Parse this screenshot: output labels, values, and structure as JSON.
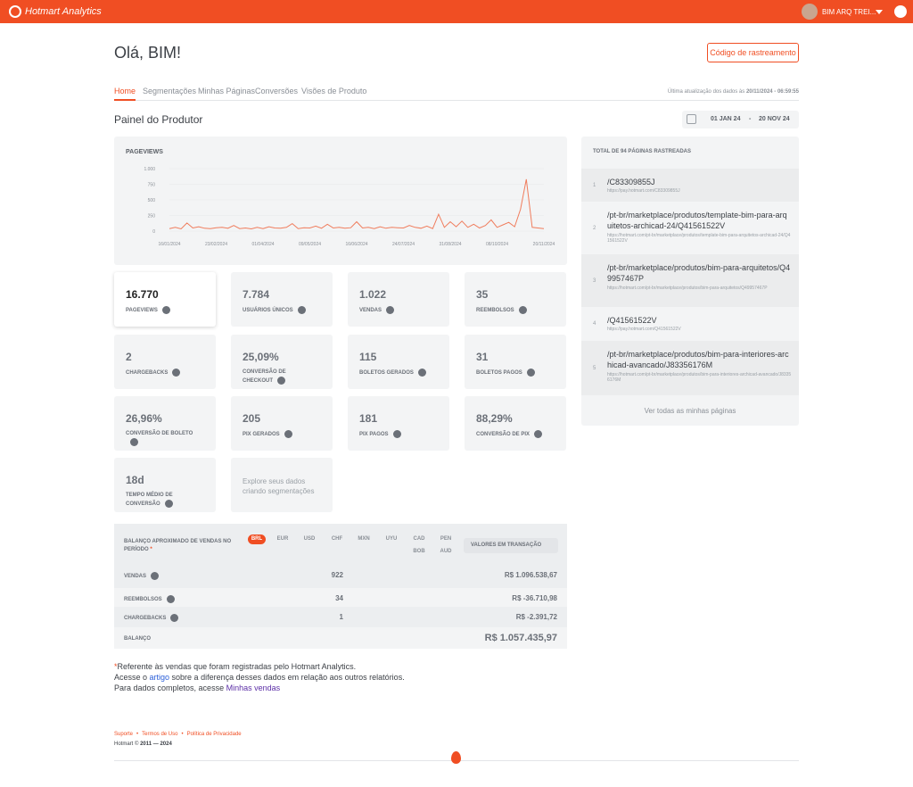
{
  "header": {
    "brand": "Hotmart Analytics",
    "user": "BIM ARQ TREI..."
  },
  "greeting": "Olá, BIM!",
  "tracking_button": "Código de rastreamento",
  "tabs": [
    "Home",
    "Segmentações",
    "Minhas Páginas",
    "Conversões",
    "Visões de Produto"
  ],
  "last_update": {
    "label": "Última atualização dos dados às",
    "date": "20/11/2024 - 06:59:55"
  },
  "panel_title": "Painel do Produtor",
  "date_range": {
    "start": "01 JAN 24",
    "separator": "-",
    "end": "20 NOV 24"
  },
  "chart_data": {
    "type": "line",
    "title": "PAGEVIEWS",
    "color": "#f07c5c",
    "grid": true,
    "categories": [
      "16/01/2024",
      null,
      null,
      null,
      null,
      null,
      null,
      null,
      "23/02/2024",
      null,
      null,
      null,
      null,
      null,
      null,
      null,
      "01/04/2024",
      null,
      null,
      null,
      null,
      null,
      null,
      null,
      "09/05/2024",
      null,
      null,
      null,
      null,
      null,
      null,
      null,
      "16/06/2024",
      null,
      null,
      null,
      null,
      null,
      null,
      null,
      "24/07/2024",
      null,
      null,
      null,
      null,
      null,
      null,
      null,
      "31/08/2024",
      null,
      null,
      null,
      null,
      null,
      null,
      null,
      "08/10/2024",
      null,
      null,
      null,
      null,
      null,
      null,
      null,
      "20/11/2024"
    ],
    "values": [
      40,
      60,
      35,
      130,
      50,
      70,
      45,
      40,
      55,
      60,
      45,
      90,
      40,
      50,
      35,
      60,
      40,
      70,
      50,
      45,
      60,
      120,
      40,
      55,
      50,
      80,
      45,
      110,
      50,
      60,
      45,
      55,
      150,
      50,
      60,
      40,
      70,
      45,
      60,
      55,
      50,
      90,
      60,
      45,
      80,
      40,
      270,
      60,
      150,
      70,
      160,
      60,
      110,
      50,
      90,
      180,
      60,
      100,
      140,
      70,
      350,
      830,
      60,
      50,
      40
    ],
    "ylim": [
      0,
      1000
    ],
    "yticks": [
      0,
      250,
      500,
      750,
      {
        "value": 1000,
        "label": "1.000"
      }
    ]
  },
  "kpis": [
    {
      "value": "16.770",
      "label": "PAGEVIEWS"
    },
    {
      "value": "7.784",
      "label": "USUÁRIOS ÚNICOS"
    },
    {
      "value": "1.022",
      "label": "VENDAS"
    },
    {
      "value": "35",
      "label": "REEMBOLSOS"
    },
    {
      "value": "2",
      "label": "CHARGEBACKS"
    },
    {
      "value": "25,09%",
      "label": "CONVERSÃO DE CHECKOUT"
    },
    {
      "value": "115",
      "label": "BOLETOS GERADOS"
    },
    {
      "value": "31",
      "label": "BOLETOS PAGOS"
    },
    {
      "value": "26,96%",
      "label": "CONVERSÃO DE BOLETO"
    },
    {
      "value": "205",
      "label": "PIX GERADOS"
    },
    {
      "value": "181",
      "label": "PIX PAGOS"
    },
    {
      "value": "88,29%",
      "label": "CONVERSÃO DE PIX"
    },
    {
      "value": "18d",
      "label": "TEMPO MÉDIO DE CONVERSÃO"
    }
  ],
  "explore_card": "Explore seus dados criando segmentações",
  "pages": {
    "title": "TOTAL DE 94 PÁGINAS RASTREADAS",
    "items": [
      {
        "index": 1,
        "path": "/C83309855J",
        "url": "https://pay.hotmart.com/C83309855J"
      },
      {
        "index": 2,
        "path": "/pt-br/marketplace/produtos/template-bim-para-arquitetos-archicad-24/Q41561522V",
        "url": "https://hotmart.com/pt-br/marketplace/produtos/template-bim-para-arquitetos-archicad-24/Q41561522V"
      },
      {
        "index": 3,
        "path": "/pt-br/marketplace/produtos/bim-para-arquitetos/Q49957467P",
        "url": "https://hotmart.com/pt-br/marketplace/produtos/bim-para-arquitetos/Q49957467P"
      },
      {
        "index": 4,
        "path": "/Q41561522V",
        "url": "https://pay.hotmart.com/Q41561522V"
      },
      {
        "index": 5,
        "path": "/pt-br/marketplace/produtos/bim-para-interiores-archicad-avancado/J83356176M",
        "url": "https://hotmart.com/pt-br/marketplace/produtos/bim-para-interiores-archicad-avancado/J83356176M"
      }
    ],
    "see_all": "Ver todas as minhas páginas"
  },
  "balance": {
    "title": "BALANÇO APROXIMADO DE VENDAS NO PERÍODO",
    "asterisk": "*",
    "currencies": [
      "BRL",
      "EUR",
      "USD",
      "CHF",
      "MXN",
      "UYU",
      "CAD",
      "PEN",
      "BOB",
      "AUD"
    ],
    "selector": "VALORES EM TRANSAÇÃO",
    "rows": [
      {
        "label": "VENDAS",
        "count": "922",
        "amount": "R$ 1.096.538,67"
      },
      {
        "label": "REEMBOLSOS",
        "count": "34",
        "amount": "R$ -36.710,98"
      },
      {
        "label": "CHARGEBACKS",
        "count": "1",
        "amount": "R$ -2.391,72"
      }
    ],
    "total": {
      "label": "BALANÇO",
      "amount": "R$ 1.057.435,97"
    }
  },
  "footnote": {
    "asterisk": "*",
    "line1": "Referente às vendas que foram registradas pelo Hotmart Analytics.",
    "line2_pre": "Acesse o ",
    "line2_link": "artigo",
    "line2_post": " sobre a diferença desses dados em relação aos outros relatórios.",
    "line3_pre": "Para dados completos, acesse ",
    "line3_link": "Minhas vendas"
  },
  "footer": {
    "links": [
      "Suporte",
      "Termos de Uso",
      "Política de Privacidade"
    ],
    "separator": "•",
    "copyright_pre": "Hotmart © ",
    "copyright_years": "2011 — 2024"
  }
}
